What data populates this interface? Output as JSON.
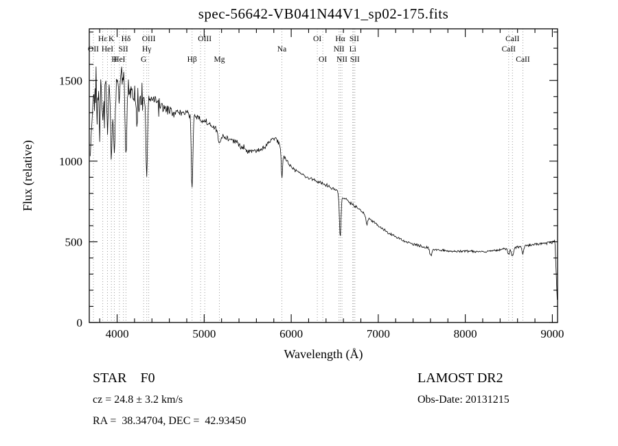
{
  "title": "spec-56642-VB041N44V1_sp02-175.fits",
  "colors": {
    "background": "#ffffff",
    "line": "#000000",
    "marker_line": "#9a9a9a",
    "text": "#000000"
  },
  "footer": {
    "classification": "STAR    F0",
    "survey": "LAMOST DR2",
    "cz": "cz = 24.8 ± 3.2 km/s",
    "obs_date": "Obs-Date: 20131215",
    "ra_dec": "RA =  38.34704, DEC =  42.93450"
  },
  "chart_data": {
    "type": "line",
    "title": "spec-56642-VB041N44V1_sp02-175.fits",
    "xlabel": "Wavelength (Å)",
    "ylabel": "Flux (relative)",
    "xlim": [
      3680,
      9060
    ],
    "ylim": [
      0,
      1820
    ],
    "x_major_ticks": [
      4000,
      5000,
      6000,
      7000,
      8000,
      9000
    ],
    "x_minor_step": 200,
    "y_major_ticks": [
      0,
      500,
      1000,
      1500
    ],
    "y_minor_step": 100,
    "grid": false,
    "legend": "none",
    "wave_start": 3692,
    "wave_end": 9060,
    "wave_step": 6,
    "noise_seed": 7,
    "cutoff_start": 9030,
    "cutoff_end": 9066,
    "continuum": [
      [
        3690,
        1050
      ],
      [
        3700,
        1180
      ],
      [
        3720,
        1350
      ],
      [
        3750,
        1430
      ],
      [
        3800,
        1470
      ],
      [
        3850,
        1500
      ],
      [
        3900,
        1510
      ],
      [
        3950,
        1500
      ],
      [
        4000,
        1520
      ],
      [
        4050,
        1530
      ],
      [
        4100,
        1490
      ],
      [
        4150,
        1430
      ],
      [
        4200,
        1390
      ],
      [
        4250,
        1360
      ],
      [
        4300,
        1355
      ],
      [
        4350,
        1390
      ],
      [
        4400,
        1400
      ],
      [
        4450,
        1370
      ],
      [
        4500,
        1345
      ],
      [
        4600,
        1315
      ],
      [
        4700,
        1295
      ],
      [
        4800,
        1305
      ],
      [
        4900,
        1275
      ],
      [
        5000,
        1245
      ],
      [
        5100,
        1215
      ],
      [
        5200,
        1160
      ],
      [
        5300,
        1135
      ],
      [
        5400,
        1105
      ],
      [
        5500,
        1065
      ],
      [
        5600,
        1065
      ],
      [
        5700,
        1085
      ],
      [
        5770,
        1135
      ],
      [
        5820,
        1145
      ],
      [
        5870,
        1100
      ],
      [
        5950,
        1000
      ],
      [
        6000,
        965
      ],
      [
        6100,
        925
      ],
      [
        6200,
        895
      ],
      [
        6300,
        875
      ],
      [
        6400,
        855
      ],
      [
        6500,
        825
      ],
      [
        6600,
        775
      ],
      [
        6700,
        735
      ],
      [
        6800,
        695
      ],
      [
        6900,
        645
      ],
      [
        7000,
        600
      ],
      [
        7100,
        560
      ],
      [
        7200,
        530
      ],
      [
        7300,
        505
      ],
      [
        7400,
        485
      ],
      [
        7500,
        470
      ],
      [
        7600,
        460
      ],
      [
        7700,
        450
      ],
      [
        7800,
        444
      ],
      [
        7900,
        440
      ],
      [
        8000,
        444
      ],
      [
        8100,
        441
      ],
      [
        8200,
        439
      ],
      [
        8300,
        443
      ],
      [
        8400,
        452
      ],
      [
        8500,
        460
      ],
      [
        8600,
        468
      ],
      [
        8700,
        476
      ],
      [
        8800,
        484
      ],
      [
        8900,
        492
      ],
      [
        9000,
        500
      ],
      [
        9060,
        505
      ]
    ],
    "noise_profile": [
      [
        3692,
        150
      ],
      [
        3950,
        115
      ],
      [
        4200,
        80
      ],
      [
        4500,
        45
      ],
      [
        4900,
        33
      ],
      [
        5400,
        28
      ],
      [
        5900,
        22
      ],
      [
        6400,
        17
      ],
      [
        6900,
        14
      ],
      [
        7400,
        12
      ],
      [
        8000,
        11
      ],
      [
        9060,
        12
      ]
    ],
    "absorption_lines": [
      [
        3770,
        200,
        7
      ],
      [
        3798,
        250,
        7
      ],
      [
        3835,
        300,
        8
      ],
      [
        3889,
        350,
        9
      ],
      [
        3934,
        520,
        10
      ],
      [
        3968,
        480,
        10
      ],
      [
        4026,
        150,
        7
      ],
      [
        4101,
        450,
        10
      ],
      [
        4226,
        120,
        7
      ],
      [
        4340,
        480,
        9
      ],
      [
        4861,
        470,
        9
      ],
      [
        5175,
        70,
        14
      ],
      [
        5893,
        170,
        8
      ],
      [
        6563,
        270,
        9
      ],
      [
        6867,
        50,
        10
      ],
      [
        7605,
        45,
        12
      ],
      [
        8498,
        40,
        10
      ],
      [
        8542,
        55,
        12
      ],
      [
        8662,
        45,
        10
      ]
    ],
    "line_markers": [
      3727,
      3835,
      3889,
      3934,
      3968,
      4026,
      4072,
      4102,
      4305,
      4340,
      4363,
      4861,
      4959,
      5007,
      5175,
      5893,
      6300,
      6363,
      6548,
      6563,
      6583,
      6707,
      6716,
      6731,
      8498,
      8542,
      8662
    ],
    "line_labels": [
      {
        "label": "Hε",
        "wavelength": 3835,
        "row": 1
      },
      {
        "label": "K",
        "wavelength": 3934,
        "row": 1
      },
      {
        "label": "Hδ",
        "wavelength": 4102,
        "row": 1
      },
      {
        "label": "OIII",
        "wavelength": 4363,
        "row": 1
      },
      {
        "label": "OIII",
        "wavelength": 5007,
        "row": 1
      },
      {
        "label": "OI",
        "wavelength": 6300,
        "row": 1
      },
      {
        "label": "Hα",
        "wavelength": 6563,
        "row": 1
      },
      {
        "label": "SII",
        "wavelength": 6724,
        "row": 1
      },
      {
        "label": "CaII",
        "wavelength": 8542,
        "row": 1
      },
      {
        "label": "OII",
        "wavelength": 3727,
        "row": 2
      },
      {
        "label": "HeI",
        "wavelength": 3889,
        "row": 2
      },
      {
        "label": "SII",
        "wavelength": 4072,
        "row": 2
      },
      {
        "label": "Hγ",
        "wavelength": 4340,
        "row": 2
      },
      {
        "label": "Na",
        "wavelength": 5893,
        "row": 2
      },
      {
        "label": "NII",
        "wavelength": 6548,
        "row": 2
      },
      {
        "label": "Li",
        "wavelength": 6707,
        "row": 2
      },
      {
        "label": "CaII",
        "wavelength": 8498,
        "row": 2
      },
      {
        "label": "H",
        "wavelength": 3968,
        "row": 3
      },
      {
        "label": "HeI",
        "wavelength": 4026,
        "row": 3
      },
      {
        "label": "G",
        "wavelength": 4305,
        "row": 3
      },
      {
        "label": "Hβ",
        "wavelength": 4861,
        "row": 3
      },
      {
        "label": "Mg",
        "wavelength": 5175,
        "row": 3
      },
      {
        "label": "OI",
        "wavelength": 6363,
        "row": 3
      },
      {
        "label": "NII",
        "wavelength": 6583,
        "row": 3
      },
      {
        "label": "SII",
        "wavelength": 6731,
        "row": 3
      },
      {
        "label": "CaII",
        "wavelength": 8662,
        "row": 3
      }
    ]
  }
}
